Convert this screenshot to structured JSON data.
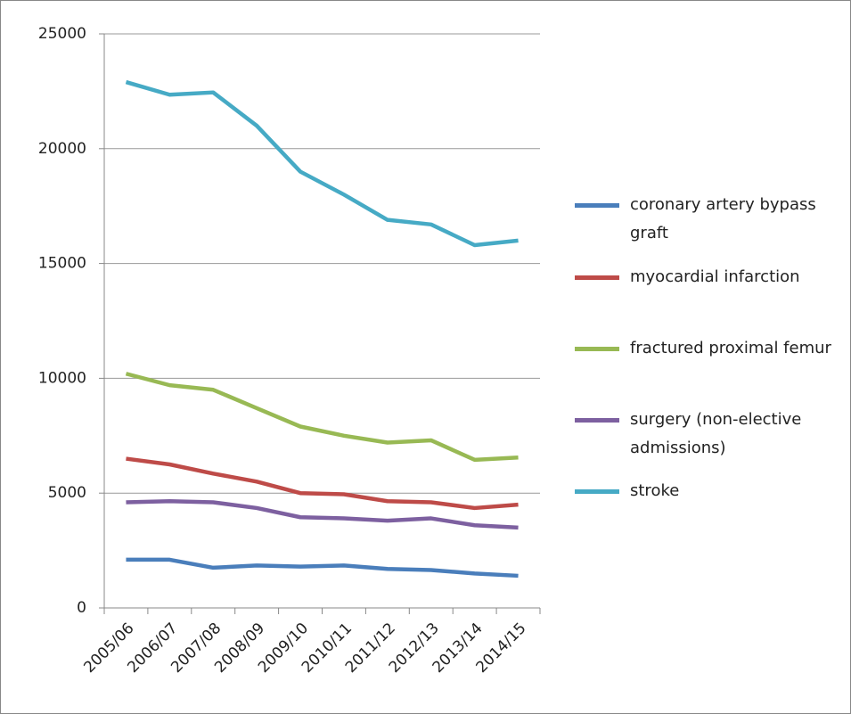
{
  "chart_data": {
    "type": "line",
    "categories": [
      "2005/06",
      "2006/07",
      "2007/08",
      "2008/09",
      "2009/10",
      "2010/11",
      "2011/12",
      "2012/13",
      "2013/14",
      "2014/15"
    ],
    "series": [
      {
        "name": "coronary artery bypass graft",
        "color": "#4a7ebb",
        "values": [
          2100,
          2100,
          1750,
          1850,
          1800,
          1850,
          1700,
          1650,
          1500,
          1400
        ]
      },
      {
        "name": "myocardial infarction",
        "color": "#be4b48",
        "values": [
          6500,
          6250,
          5850,
          5500,
          5000,
          4950,
          4650,
          4600,
          4350,
          4500
        ]
      },
      {
        "name": "fractured proximal femur",
        "color": "#98b954",
        "values": [
          10200,
          9700,
          9500,
          8700,
          7900,
          7500,
          7200,
          7300,
          6450,
          6550
        ]
      },
      {
        "name": "surgery (non-elective admissions)",
        "color": "#7d60a0",
        "values": [
          4600,
          4650,
          4600,
          4350,
          3950,
          3900,
          3800,
          3900,
          3600,
          3500
        ]
      },
      {
        "name": "stroke",
        "color": "#46aac5",
        "values": [
          22900,
          22350,
          22450,
          21000,
          19000,
          18000,
          16900,
          16700,
          15800,
          16000
        ]
      }
    ],
    "ylim": [
      0,
      25000
    ],
    "yticks": [
      0,
      5000,
      10000,
      15000,
      20000,
      25000
    ],
    "grid": true,
    "legend": "right"
  }
}
